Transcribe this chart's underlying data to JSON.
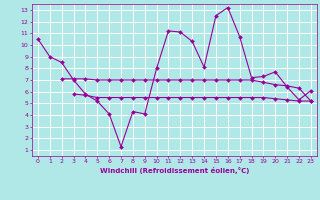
{
  "xlabel": "Windchill (Refroidissement éolien,°C)",
  "background_color": "#b0e8e8",
  "grid_color": "#ffffff",
  "line_color": "#990099",
  "xlim": [
    -0.5,
    23.5
  ],
  "ylim": [
    0.5,
    13.5
  ],
  "yticks": [
    1,
    2,
    3,
    4,
    5,
    6,
    7,
    8,
    9,
    10,
    11,
    12,
    13
  ],
  "xticks": [
    0,
    1,
    2,
    3,
    4,
    5,
    6,
    7,
    8,
    9,
    10,
    11,
    12,
    13,
    14,
    15,
    16,
    17,
    18,
    19,
    20,
    21,
    22,
    23
  ],
  "series1_x": [
    0,
    1,
    2,
    3,
    4,
    5,
    6,
    7,
    8,
    9,
    10,
    11,
    12,
    13,
    14,
    15,
    16,
    17,
    18,
    19,
    20,
    21,
    22,
    23
  ],
  "series1_y": [
    10.5,
    9.0,
    8.5,
    7.0,
    5.8,
    5.2,
    4.1,
    1.3,
    4.3,
    4.1,
    8.0,
    11.2,
    11.1,
    10.3,
    8.1,
    12.5,
    13.2,
    10.7,
    7.2,
    7.3,
    7.7,
    6.4,
    5.3,
    6.1
  ],
  "series2_x": [
    2,
    3,
    4,
    5,
    6,
    7,
    8,
    9,
    10,
    11,
    12,
    13,
    14,
    15,
    16,
    17,
    18,
    19,
    20,
    21,
    22,
    23
  ],
  "series2_y": [
    7.1,
    7.1,
    7.1,
    7.0,
    7.0,
    7.0,
    7.0,
    7.0,
    7.0,
    7.0,
    7.0,
    7.0,
    7.0,
    7.0,
    7.0,
    7.0,
    7.0,
    6.8,
    6.6,
    6.5,
    6.3,
    5.2
  ],
  "series3_x": [
    3,
    4,
    5,
    6,
    7,
    8,
    9,
    10,
    11,
    12,
    13,
    14,
    15,
    16,
    17,
    18,
    19,
    20,
    21,
    22,
    23
  ],
  "series3_y": [
    5.8,
    5.7,
    5.5,
    5.5,
    5.5,
    5.5,
    5.5,
    5.5,
    5.5,
    5.5,
    5.5,
    5.5,
    5.5,
    5.5,
    5.5,
    5.5,
    5.5,
    5.4,
    5.3,
    5.2,
    5.2
  ]
}
